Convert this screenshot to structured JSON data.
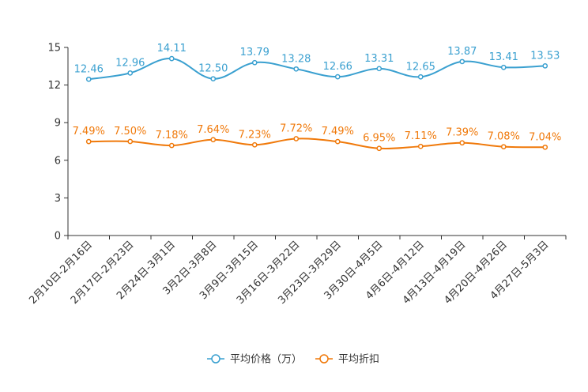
{
  "chart_data": {
    "type": "line",
    "title": "",
    "xlabel": "",
    "ylabel": "",
    "ylim": [
      0,
      15
    ],
    "yticks": [
      0,
      3,
      6,
      9,
      12,
      15
    ],
    "grid": false,
    "legend_position": "bottom-center",
    "categories": [
      "2月10日-2月16日",
      "2月17日-2月23日",
      "2月24日-3月1日",
      "3月2日-3月8日",
      "3月9日-3月15日",
      "3月16日-3月22日",
      "3月23日-3月29日",
      "3月30日-4月5日",
      "4月6日-4月12日",
      "4月13日-4月19日",
      "4月20日-4月26日",
      "4月27日-5月3日"
    ],
    "series": [
      {
        "name": "平均价格（万）",
        "color": "#3aa0d0",
        "values": [
          12.46,
          12.96,
          14.11,
          12.5,
          13.79,
          13.28,
          12.66,
          13.31,
          12.65,
          13.87,
          13.41,
          13.53
        ],
        "labels": [
          "12.46",
          "12.96",
          "14.11",
          "12.50",
          "13.79",
          "13.28",
          "12.66",
          "13.31",
          "12.65",
          "13.87",
          "13.41",
          "13.53"
        ]
      },
      {
        "name": "平均折扣",
        "color": "#f0790a",
        "values": [
          7.49,
          7.5,
          7.18,
          7.64,
          7.23,
          7.72,
          7.49,
          6.95,
          7.11,
          7.39,
          7.08,
          7.04
        ],
        "labels": [
          "7.49%",
          "7.50%",
          "7.18%",
          "7.64%",
          "7.23%",
          "7.72%",
          "7.49%",
          "6.95%",
          "7.11%",
          "7.39%",
          "7.08%",
          "7.04%"
        ]
      }
    ]
  }
}
